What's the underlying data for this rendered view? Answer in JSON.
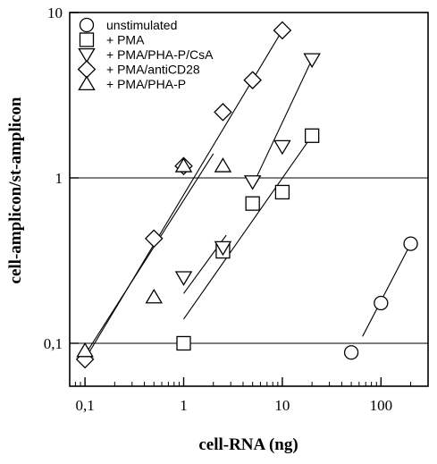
{
  "chart_data": {
    "type": "scatter",
    "xlabel": "cell-RNA (ng)",
    "ylabel": "cell-amplicon/st-amplicon",
    "x_scale": "log",
    "y_scale": "log",
    "xlim": [
      0.07,
      300
    ],
    "ylim": [
      0.055,
      10
    ],
    "x_ticks": [
      {
        "value": 0.1,
        "label": "0,1"
      },
      {
        "value": 1,
        "label": "1"
      },
      {
        "value": 10,
        "label": "10"
      },
      {
        "value": 100,
        "label": "100"
      }
    ],
    "y_ticks": [
      {
        "value": 0.1,
        "label": "0,1"
      },
      {
        "value": 1,
        "label": "1"
      },
      {
        "value": 10,
        "label": "10"
      }
    ],
    "reference_lines_y": [
      0.1,
      1
    ],
    "legend_position": "top-left",
    "series": [
      {
        "name": "unstimulated",
        "marker": "circle",
        "points": [
          [
            50,
            0.088
          ],
          [
            100,
            0.175
          ],
          [
            200,
            0.4
          ]
        ],
        "fit_lines": [
          [
            [
              65,
              0.11
            ],
            [
              200,
              0.4
            ]
          ]
        ]
      },
      {
        "name": "+ PMA",
        "marker": "square",
        "points": [
          [
            1,
            0.1
          ],
          [
            2.5,
            0.36
          ],
          [
            5,
            0.7
          ],
          [
            10,
            0.82
          ],
          [
            20,
            1.8
          ]
        ],
        "fit_lines": [
          [
            [
              1,
              0.14
            ],
            [
              20,
              1.8
            ]
          ]
        ]
      },
      {
        "name": "+ PMA/PHA-P/CsA",
        "marker": "triangle-down",
        "points": [
          [
            1,
            0.25
          ],
          [
            2.5,
            0.38
          ],
          [
            5,
            0.95
          ],
          [
            10,
            1.55
          ],
          [
            20,
            5.2
          ]
        ],
        "fit_lines": [
          [
            [
              1,
              0.2
            ],
            [
              2.7,
              0.45
            ]
          ],
          [
            [
              5,
              0.9
            ],
            [
              20,
              5.2
            ]
          ]
        ]
      },
      {
        "name": "+ PMA/antiCD28",
        "marker": "diamond",
        "points": [
          [
            0.1,
            0.08
          ],
          [
            0.5,
            0.43
          ],
          [
            1,
            1.18
          ],
          [
            2.5,
            2.5
          ],
          [
            5,
            3.9
          ],
          [
            10,
            7.8
          ]
        ],
        "fit_lines": [
          [
            [
              0.1,
              0.08
            ],
            [
              10,
              7.8
            ]
          ]
        ]
      },
      {
        "name": "+ PMA/PHA-P",
        "marker": "triangle-up",
        "points": [
          [
            0.1,
            0.09
          ],
          [
            0.5,
            0.19
          ],
          [
            1,
            1.18
          ],
          [
            2.5,
            1.18
          ]
        ],
        "fit_lines": [
          [
            [
              0.1,
              0.085
            ],
            [
              2,
              1.4
            ]
          ]
        ]
      }
    ]
  }
}
